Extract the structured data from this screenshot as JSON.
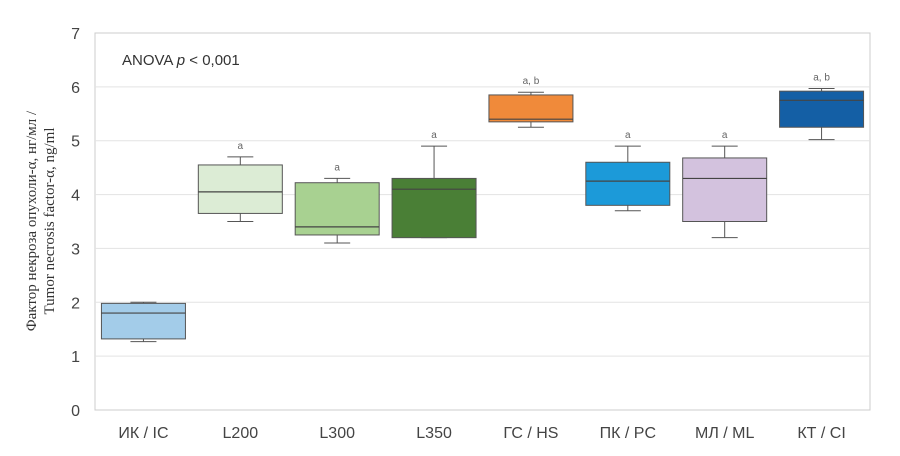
{
  "chart_data": {
    "type": "boxplot",
    "ylabel_lines": [
      "Фактор некроза опухоли-α, нг/мл /",
      "Tumor necrosis factor-α, ng/ml"
    ],
    "ylim": [
      0,
      7
    ],
    "yticks": [
      "0",
      "1",
      "2",
      "3",
      "4",
      "5",
      "6",
      "7"
    ],
    "grid": true,
    "annotation": {
      "prefix": "ANOVA ",
      "p": "p",
      "suffix": " < 0,001"
    },
    "categories": [
      "ИК / IC",
      "L200",
      "L300",
      "L350",
      "ГС / HS",
      "ПК / PC",
      "МЛ / ML",
      "КТ / CI"
    ],
    "boxes": [
      {
        "whisker_low": 1.27,
        "q1": 1.32,
        "median": 1.8,
        "q3": 1.98,
        "whisker_high": 2.0,
        "sig": "",
        "color": "#a3cce9"
      },
      {
        "whisker_low": 3.5,
        "q1": 3.65,
        "median": 4.05,
        "q3": 4.55,
        "whisker_high": 4.7,
        "sig": "a",
        "color": "#dcecd5"
      },
      {
        "whisker_low": 3.1,
        "q1": 3.25,
        "median": 3.4,
        "q3": 4.22,
        "whisker_high": 4.3,
        "sig": "a",
        "color": "#a8d191"
      },
      {
        "whisker_low": 3.2,
        "q1": 3.2,
        "median": 4.1,
        "q3": 4.3,
        "whisker_high": 4.9,
        "sig": "a",
        "color": "#4a7f36"
      },
      {
        "whisker_low": 5.25,
        "q1": 5.35,
        "median": 5.4,
        "q3": 5.85,
        "whisker_high": 5.9,
        "sig": "a, b",
        "color": "#f08a3a"
      },
      {
        "whisker_low": 3.7,
        "q1": 3.8,
        "median": 4.25,
        "q3": 4.6,
        "whisker_high": 4.9,
        "sig": "a",
        "color": "#1c9ad9"
      },
      {
        "whisker_low": 3.2,
        "q1": 3.5,
        "median": 4.3,
        "q3": 4.68,
        "whisker_high": 4.9,
        "sig": "a",
        "color": "#d3c2de"
      },
      {
        "whisker_low": 5.02,
        "q1": 5.25,
        "median": 5.75,
        "q3": 5.92,
        "whisker_high": 5.97,
        "sig": "a, b",
        "color": "#145fa5"
      }
    ]
  }
}
